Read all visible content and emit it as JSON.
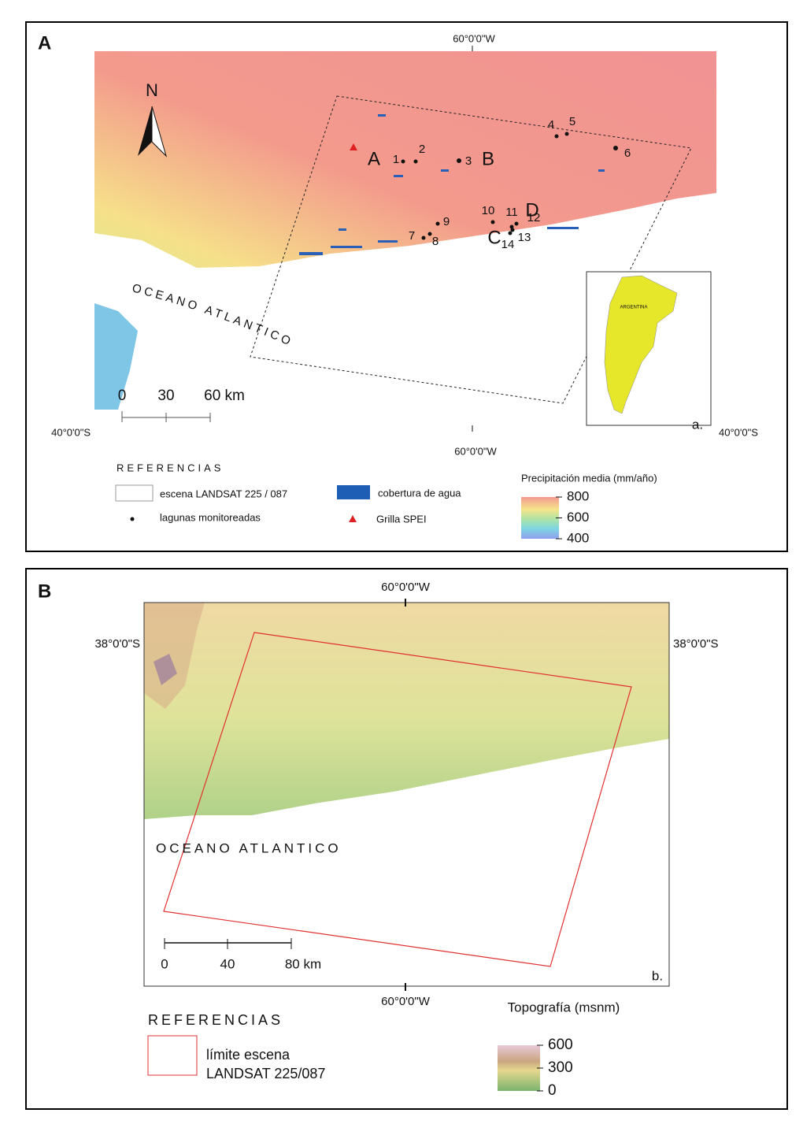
{
  "panel_a": {
    "label": "A",
    "top_longitude": "60°0'0\"W",
    "bottom_longitude": "60°0'0\"W",
    "left_latitude": "40°0'0\"S",
    "right_latitude": "40°0'0\"S",
    "north": "N",
    "ocean": "OCEANO ATLANTICO",
    "scale": [
      "0",
      "30",
      "60 km"
    ],
    "sites": [
      "A",
      "B",
      "C",
      "D"
    ],
    "lagoons": [
      "1",
      "2",
      "3",
      "4",
      "5",
      "6",
      "7",
      "8",
      "9",
      "10",
      "11",
      "12",
      "13",
      "14"
    ],
    "inset_country": "ARGENTINA",
    "inset_label": "a.",
    "legend": {
      "title": "REFERENCIAS",
      "items": [
        "escena LANDSAT 225 / 087",
        "lagunas monitoreadas",
        "cobertura de agua",
        "Grilla SPEI"
      ],
      "colorbar_title": "Precipitación media (mm/año)",
      "colorbar_ticks": [
        800,
        600,
        400
      ]
    }
  },
  "panel_b": {
    "label": "B",
    "top_longitude": "60°0'0\"W",
    "bottom_longitude": "60°0'0\"W",
    "left_latitude": "38°0'0\"S",
    "right_latitude": "38°0'0\"S",
    "ocean": "OCEANO ATLANTICO",
    "scale": [
      "0",
      "40",
      "80 km"
    ],
    "inset_label": "b.",
    "legend": {
      "title": "REFERENCIAS",
      "items": [
        "límite escena",
        "LANDSAT 225/087"
      ],
      "colorbar_title": "Topografía (msnm)",
      "colorbar_ticks": [
        600,
        300,
        0
      ]
    }
  }
}
